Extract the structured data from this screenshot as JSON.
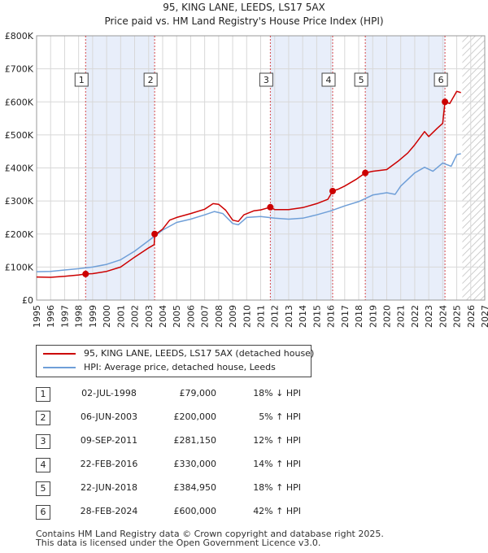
{
  "colors": {
    "property_line": "#cc0000",
    "hpi_line": "#6f9fd8",
    "shade": "#e8eefa",
    "grid": "#d8d8d8"
  },
  "chart_data": {
    "type": "line",
    "title": "95, KING LANE, LEEDS, LS17 5AX",
    "subtitle": "Price paid vs. HM Land Registry's House Price Index (HPI)",
    "xlabel": "",
    "ylabel": "",
    "xlim": [
      1995,
      2027
    ],
    "ylim": [
      0,
      800000
    ],
    "x_ticks": [
      "1995",
      "1996",
      "1997",
      "1998",
      "1999",
      "2000",
      "2001",
      "2002",
      "2003",
      "2004",
      "2005",
      "2006",
      "2007",
      "2008",
      "2009",
      "2010",
      "2011",
      "2012",
      "2013",
      "2014",
      "2015",
      "2016",
      "2017",
      "2018",
      "2019",
      "2020",
      "2021",
      "2022",
      "2023",
      "2024",
      "2025",
      "2026",
      "2027"
    ],
    "y_ticks": [
      {
        "value": 0,
        "label": "£0"
      },
      {
        "value": 100000,
        "label": "£100K"
      },
      {
        "value": 200000,
        "label": "£200K"
      },
      {
        "value": 300000,
        "label": "£300K"
      },
      {
        "value": 400000,
        "label": "£400K"
      },
      {
        "value": 500000,
        "label": "£500K"
      },
      {
        "value": 600000,
        "label": "£600K"
      },
      {
        "value": 700000,
        "label": "£700K"
      },
      {
        "value": 800000,
        "label": "£800K"
      }
    ],
    "grid": true,
    "shaded_spans": [
      [
        1998.5,
        2003.43
      ],
      [
        2011.69,
        2016.14
      ],
      [
        2018.47,
        2024.16
      ]
    ],
    "future_hatch_from": 2025.4,
    "series": [
      {
        "name": "95, KING LANE, LEEDS, LS17 5AX (detached house)",
        "color": "#cc0000",
        "points": [
          [
            1995.0,
            70000
          ],
          [
            1996.0,
            69000
          ],
          [
            1997.0,
            72000
          ],
          [
            1998.0,
            76000
          ],
          [
            1998.5,
            79000
          ],
          [
            1999.0,
            80000
          ],
          [
            2000.0,
            87000
          ],
          [
            2001.0,
            100000
          ],
          [
            2002.0,
            130000
          ],
          [
            2003.0,
            158000
          ],
          [
            2003.4,
            168000
          ],
          [
            2003.43,
            200000
          ],
          [
            2003.6,
            202000
          ],
          [
            2004.0,
            215000
          ],
          [
            2004.5,
            242000
          ],
          [
            2005.0,
            250000
          ],
          [
            2006.0,
            262000
          ],
          [
            2007.0,
            275000
          ],
          [
            2007.6,
            292000
          ],
          [
            2008.0,
            290000
          ],
          [
            2008.5,
            272000
          ],
          [
            2009.0,
            242000
          ],
          [
            2009.4,
            238000
          ],
          [
            2009.8,
            258000
          ],
          [
            2010.5,
            270000
          ],
          [
            2011.0,
            273000
          ],
          [
            2011.69,
            281150
          ],
          [
            2012.0,
            274000
          ],
          [
            2013.0,
            274000
          ],
          [
            2014.0,
            280000
          ],
          [
            2015.0,
            292000
          ],
          [
            2015.8,
            305000
          ],
          [
            2016.14,
            330000
          ],
          [
            2016.5,
            335000
          ],
          [
            2017.0,
            345000
          ],
          [
            2017.8,
            365000
          ],
          [
            2018.47,
            384950
          ],
          [
            2019.0,
            390000
          ],
          [
            2020.0,
            395000
          ],
          [
            2020.8,
            420000
          ],
          [
            2021.5,
            445000
          ],
          [
            2022.0,
            470000
          ],
          [
            2022.7,
            510000
          ],
          [
            2023.0,
            495000
          ],
          [
            2023.6,
            520000
          ],
          [
            2024.0,
            535000
          ],
          [
            2024.16,
            600000
          ],
          [
            2024.5,
            595000
          ],
          [
            2025.0,
            632000
          ],
          [
            2025.3,
            628000
          ]
        ]
      },
      {
        "name": "HPI: Average price, detached house, Leeds",
        "color": "#6f9fd8",
        "points": [
          [
            1995.0,
            86000
          ],
          [
            1996.0,
            87000
          ],
          [
            1997.0,
            91000
          ],
          [
            1998.0,
            95000
          ],
          [
            1999.0,
            100000
          ],
          [
            2000.0,
            108000
          ],
          [
            2001.0,
            122000
          ],
          [
            2002.0,
            148000
          ],
          [
            2003.0,
            180000
          ],
          [
            2004.0,
            212000
          ],
          [
            2005.0,
            235000
          ],
          [
            2006.0,
            245000
          ],
          [
            2007.0,
            258000
          ],
          [
            2007.7,
            268000
          ],
          [
            2008.3,
            262000
          ],
          [
            2009.0,
            232000
          ],
          [
            2009.4,
            228000
          ],
          [
            2010.0,
            250000
          ],
          [
            2011.0,
            253000
          ],
          [
            2012.0,
            248000
          ],
          [
            2013.0,
            245000
          ],
          [
            2014.0,
            248000
          ],
          [
            2015.0,
            258000
          ],
          [
            2016.0,
            270000
          ],
          [
            2017.0,
            285000
          ],
          [
            2018.0,
            298000
          ],
          [
            2019.0,
            318000
          ],
          [
            2020.0,
            325000
          ],
          [
            2020.6,
            320000
          ],
          [
            2021.0,
            345000
          ],
          [
            2022.0,
            385000
          ],
          [
            2022.7,
            402000
          ],
          [
            2023.3,
            390000
          ],
          [
            2024.0,
            415000
          ],
          [
            2024.6,
            405000
          ],
          [
            2025.0,
            440000
          ],
          [
            2025.3,
            443000
          ]
        ]
      }
    ],
    "sales": [
      {
        "label": "1",
        "x": 1998.5,
        "value": 79000
      },
      {
        "label": "2",
        "x": 2003.43,
        "value": 200000
      },
      {
        "label": "3",
        "x": 2011.69,
        "value": 281150
      },
      {
        "label": "4",
        "x": 2016.14,
        "value": 330000
      },
      {
        "label": "5",
        "x": 2018.47,
        "value": 384950
      },
      {
        "label": "6",
        "x": 2024.16,
        "value": 600000
      }
    ]
  },
  "legend": {
    "property": "95, KING LANE, LEEDS, LS17 5AX (detached house)",
    "hpi": "HPI: Average price, detached house, Leeds"
  },
  "sales_table": [
    {
      "num": "1",
      "date": "02-JUL-1998",
      "price": "£79,000",
      "hpi": "18% ↓ HPI"
    },
    {
      "num": "2",
      "date": "06-JUN-2003",
      "price": "£200,000",
      "hpi": "5% ↑ HPI"
    },
    {
      "num": "3",
      "date": "09-SEP-2011",
      "price": "£281,150",
      "hpi": "12% ↑ HPI"
    },
    {
      "num": "4",
      "date": "22-FEB-2016",
      "price": "£330,000",
      "hpi": "14% ↑ HPI"
    },
    {
      "num": "5",
      "date": "22-JUN-2018",
      "price": "£384,950",
      "hpi": "18% ↑ HPI"
    },
    {
      "num": "6",
      "date": "28-FEB-2024",
      "price": "£600,000",
      "hpi": "42% ↑ HPI"
    }
  ],
  "footer": {
    "line1": "Contains HM Land Registry data © Crown copyright and database right 2025.",
    "line2": "This data is licensed under the Open Government Licence v3.0."
  }
}
